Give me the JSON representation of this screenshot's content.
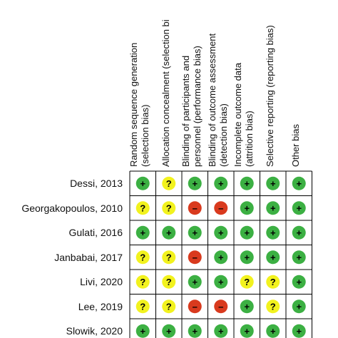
{
  "chart_data": {
    "type": "table",
    "domains": [
      [
        "Random sequence generation",
        "(selection bias)"
      ],
      [
        "Allocation concealment (selection bi",
        ""
      ],
      [
        "Blinding of participants and",
        "personnel (performance bias)"
      ],
      [
        "Blinding of outcome assessment",
        "(detection bias)"
      ],
      [
        "Incomplete outcome data",
        "(attrition bias)"
      ],
      [
        "Selective reporting (reporting bias)",
        ""
      ],
      [
        "Other bias",
        ""
      ]
    ],
    "studies": [
      "Dessi, 2013",
      "Georgakopoulos, 2010",
      "Gulati, 2016",
      "Janbabai, 2017",
      "Livi, 2020",
      "Lee, 2019",
      "Slowik, 2020"
    ],
    "judgements": [
      [
        "+",
        "?",
        "+",
        "+",
        "+",
        "+",
        "+"
      ],
      [
        "?",
        "?",
        "-",
        "-",
        "+",
        "+",
        "+"
      ],
      [
        "+",
        "+",
        "+",
        "+",
        "+",
        "+",
        "+"
      ],
      [
        "?",
        "?",
        "-",
        "+",
        "+",
        "+",
        "+"
      ],
      [
        "?",
        "?",
        "+",
        "+",
        "?",
        "?",
        "+"
      ],
      [
        "?",
        "?",
        "-",
        "-",
        "+",
        "?",
        "+"
      ],
      [
        "+",
        "+",
        "+",
        "+",
        "+",
        "+",
        "+"
      ]
    ],
    "symbols": {
      "+": "+",
      "?": "?",
      "-": "–"
    },
    "colors": {
      "+": "#3cb043",
      "?": "#f2f21e",
      "-": "#d93a1e",
      "grid": "#000000"
    }
  }
}
